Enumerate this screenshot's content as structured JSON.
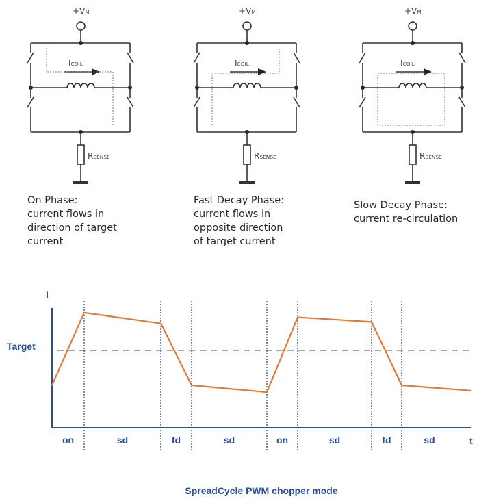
{
  "circuits": [
    {
      "phase": "on",
      "supply_label": "+V",
      "supply_sub": "M",
      "coil_label": "I",
      "coil_sub": "COIL",
      "sense_label": "R",
      "sense_sub": "SENSE",
      "caption": [
        "On Phase:",
        "current flows in",
        "direction of target",
        "current"
      ]
    },
    {
      "phase": "fast-decay",
      "supply_label": "+V",
      "supply_sub": "M",
      "coil_label": "I",
      "coil_sub": "COIL",
      "sense_label": "R",
      "sense_sub": "SENSE",
      "caption": [
        "Fast Decay Phase:",
        "current flows in",
        "opposite direction",
        "of target current"
      ]
    },
    {
      "phase": "slow-decay",
      "supply_label": "+V",
      "supply_sub": "M",
      "coil_label": "I",
      "coil_sub": "COIL",
      "sense_label": "R",
      "sense_sub": "SENSE",
      "caption": [
        "Slow Decay Phase:",
        "current re-circulation"
      ]
    }
  ],
  "chart_data": {
    "type": "line",
    "title": "SpreadCycle PWM chopper mode",
    "xlabel": "t",
    "ylabel": "I",
    "target_label": "Target",
    "target_value": 1.0,
    "phases": [
      "on",
      "sd",
      "fd",
      "sd",
      "on",
      "sd",
      "fd",
      "sd"
    ],
    "x": [
      0,
      4.7,
      15.9,
      20.4,
      31.4,
      35.9,
      46.7,
      51.1,
      61.2
    ],
    "y": [
      0.55,
      1.49,
      1.35,
      0.55,
      0.46,
      1.43,
      1.37,
      0.55,
      0.48
    ],
    "ylim": [
      0,
      1.55
    ],
    "colors": {
      "line": "#e07a3a",
      "axis": "#2b4f93",
      "target": "#9a9a9a",
      "divider": "#2b3b6a"
    }
  }
}
